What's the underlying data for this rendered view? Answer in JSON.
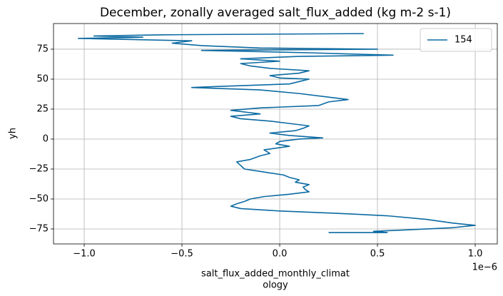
{
  "chart_data": {
    "type": "line",
    "title": "December, zonally averaged salt_flux_added (kg m-2 s-1)",
    "xlabel": [
      "salt_flux_added_monthly_climat",
      "ology"
    ],
    "ylabel": "yh",
    "x_offset_label": "1e−6",
    "xlim": [
      -1.157,
      1.113
    ],
    "ylim": [
      -87.5,
      96.4
    ],
    "xticks": [
      {
        "value": -1,
        "label": "−1.0"
      },
      {
        "value": -0.5,
        "label": "−0.5"
      },
      {
        "value": 0,
        "label": "0.0"
      },
      {
        "value": 0.5,
        "label": "0.5"
      },
      {
        "value": 1,
        "label": "1.0"
      }
    ],
    "yticks": [
      {
        "value": -75,
        "label": "−75"
      },
      {
        "value": -50,
        "label": "−50"
      },
      {
        "value": -25,
        "label": "−25"
      },
      0,
      25,
      50,
      75
    ],
    "grid": true,
    "legend": "upper right",
    "series": [
      {
        "name": "154",
        "color": "#0b6aa2",
        "y": [
          -78,
          -78,
          -77,
          -76,
          -74,
          -72,
          -70,
          -67,
          -64,
          -62,
          -60,
          -58,
          -56,
          -54,
          -52,
          -50,
          -48,
          -46,
          -44,
          -42,
          -40,
          -38,
          -36,
          -34,
          -32,
          -30,
          -27,
          -25,
          -22,
          -19,
          -17,
          -14,
          -12,
          -9,
          -6,
          -4,
          -2,
          0,
          1,
          3,
          5,
          7,
          9,
          11,
          13,
          15,
          17,
          19,
          21,
          22,
          24,
          26,
          28,
          31,
          33,
          35,
          38,
          41,
          43,
          44,
          46,
          48,
          50,
          51,
          53,
          55,
          57,
          59,
          61,
          63,
          65,
          67,
          69,
          70,
          72,
          74,
          75,
          76,
          78,
          80,
          82,
          84,
          85,
          86,
          87,
          88
        ],
        "values": [
          0.25,
          0.55,
          0.48,
          0.62,
          0.88,
          1.0,
          0.88,
          0.75,
          0.55,
          0.3,
          0.0,
          -0.2,
          -0.25,
          -0.22,
          -0.18,
          -0.15,
          -0.08,
          0.05,
          0.15,
          0.13,
          0.12,
          0.15,
          0.08,
          0.1,
          0.05,
          0.02,
          -0.1,
          -0.18,
          -0.2,
          -0.22,
          -0.15,
          -0.1,
          -0.05,
          -0.08,
          0.05,
          -0.02,
          0.0,
          0.1,
          0.22,
          0.05,
          -0.05,
          0.08,
          0.12,
          0.15,
          0.05,
          -0.05,
          -0.2,
          -0.25,
          -0.1,
          -0.15,
          -0.25,
          -0.1,
          0.2,
          0.25,
          0.35,
          0.25,
          0.1,
          -0.1,
          -0.45,
          -0.3,
          0.05,
          0.1,
          0.15,
          0.0,
          -0.05,
          0.1,
          0.15,
          -0.05,
          -0.15,
          -0.2,
          0.0,
          -0.2,
          0.1,
          0.58,
          0.15,
          -0.4,
          0.5,
          -0.1,
          -0.4,
          -0.55,
          -0.45,
          -1.03,
          -0.7,
          -0.95,
          -0.6,
          0.43
        ]
      }
    ]
  }
}
